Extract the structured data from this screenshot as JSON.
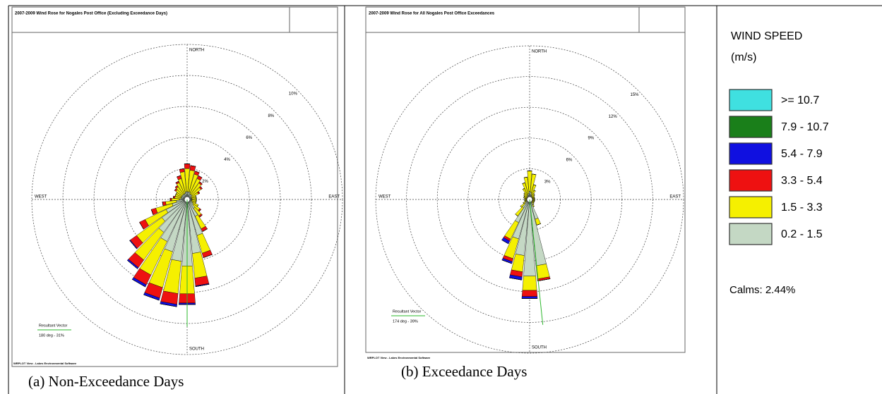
{
  "chart_data": [
    {
      "type": "windrose",
      "title": "2007-2009 Wind Rose for Nogales Post Office (Excluding Exceedance Days)",
      "caption": "(a) Non-Exceedance Days",
      "footer": "WRPLOT View - Lakes Environmental Software",
      "direction_labels": {
        "north": "NORTH",
        "south": "SOUTH",
        "east": "EAST",
        "west": "WEST"
      },
      "resultant": {
        "label": "Resultant Vector",
        "direction": 180,
        "text": "180 deg - 31%"
      },
      "rlim": [
        0,
        10
      ],
      "rticks": [
        {
          "value": 2,
          "label": "2%"
        },
        {
          "value": 4,
          "label": "4%"
        },
        {
          "value": 6,
          "label": "6%"
        },
        {
          "value": 8,
          "label": "8%"
        },
        {
          "value": 10,
          "label": "10%"
        }
      ],
      "directions": [
        0,
        10,
        20,
        30,
        40,
        50,
        60,
        70,
        80,
        90,
        100,
        110,
        120,
        130,
        140,
        150,
        160,
        170,
        180,
        190,
        200,
        210,
        220,
        230,
        240,
        250,
        260,
        270,
        280,
        290,
        300,
        310,
        320,
        330,
        340,
        350
      ],
      "series": [
        {
          "values": [
            0,
            0,
            0,
            0,
            0,
            0,
            0,
            0,
            0,
            0,
            0,
            0,
            0,
            0,
            0,
            0,
            0,
            0,
            0,
            0,
            0,
            0,
            0,
            0,
            0,
            0,
            0,
            0,
            0,
            0,
            0,
            0,
            0,
            0,
            0,
            0
          ]
        },
        {
          "values": [
            0,
            0,
            0,
            0,
            0,
            0,
            0,
            0,
            0,
            0,
            0,
            0,
            0,
            0,
            0,
            0,
            0,
            0,
            0,
            0,
            0,
            0,
            0,
            0,
            0,
            0,
            0,
            0,
            0,
            0,
            0,
            0,
            0,
            0,
            0,
            0
          ]
        },
        {
          "values": [
            0,
            0,
            0,
            0,
            0,
            0,
            0,
            0,
            0,
            0,
            0,
            0,
            0,
            0,
            0,
            0,
            0,
            0.05,
            0.1,
            0.15,
            0.15,
            0.15,
            0.1,
            0.05,
            0,
            0,
            0,
            0,
            0,
            0,
            0,
            0,
            0,
            0,
            0,
            0
          ]
        },
        {
          "values": [
            0.3,
            0.3,
            0.2,
            0.2,
            0.1,
            0.1,
            0.1,
            0,
            0,
            0,
            0,
            0,
            0,
            0.1,
            0.1,
            0.2,
            0.3,
            0.5,
            0.6,
            0.7,
            0.7,
            0.7,
            0.6,
            0.5,
            0.4,
            0.3,
            0.2,
            0.1,
            0.1,
            0,
            0,
            0.1,
            0.1,
            0.1,
            0.2,
            0.2
          ]
        },
        {
          "values": [
            1.5,
            1.4,
            1.2,
            1.1,
            0.9,
            0.7,
            0.5,
            0.3,
            0.3,
            0.3,
            0.3,
            0.3,
            0.4,
            0.5,
            0.6,
            0.9,
            1.2,
            1.6,
            1.8,
            2.1,
            2.4,
            2.4,
            2.2,
            2.0,
            1.5,
            1.1,
            0.7,
            0.5,
            0.4,
            0.4,
            0.4,
            0.5,
            0.6,
            0.8,
            1.0,
            1.3
          ]
        },
        {
          "values": [
            0.5,
            0.5,
            0.5,
            0.4,
            0.4,
            0.4,
            0.3,
            0.3,
            0.3,
            0.3,
            0.3,
            0.3,
            0.4,
            0.5,
            0.7,
            1.2,
            2.4,
            3.5,
            4.3,
            4.0,
            3.5,
            3.0,
            2.6,
            2.0,
            1.5,
            1.0,
            0.7,
            0.5,
            0.4,
            0.4,
            0.4,
            0.4,
            0.4,
            0.4,
            0.4,
            0.5
          ]
        }
      ]
    },
    {
      "type": "windrose",
      "title": "2007-2009 Wind Rose for All Nogales Post Office Exceedances",
      "caption": "(b) Exceedance Days",
      "footer": "WRPLOT View - Lakes Environmental Software",
      "direction_labels": {
        "north": "NORTH",
        "south": "SOUTH",
        "east": "EAST",
        "west": "WEST"
      },
      "resultant": {
        "label": "Resultant Vector",
        "direction": 174,
        "text": "174 deg - 39%"
      },
      "rlim": [
        0,
        15
      ],
      "rticks": [
        {
          "value": 3,
          "label": "3%"
        },
        {
          "value": 6,
          "label": "6%"
        },
        {
          "value": 9,
          "label": "9%"
        },
        {
          "value": 12,
          "label": "12%"
        },
        {
          "value": 15,
          "label": "15%"
        }
      ],
      "directions": [
        0,
        10,
        20,
        30,
        40,
        50,
        60,
        70,
        80,
        90,
        100,
        110,
        120,
        130,
        140,
        150,
        160,
        170,
        180,
        190,
        200,
        210,
        220,
        230,
        240,
        250,
        260,
        270,
        280,
        290,
        300,
        310,
        320,
        330,
        340,
        350
      ],
      "series": [
        {
          "values": [
            0,
            0,
            0,
            0,
            0,
            0,
            0,
            0,
            0,
            0,
            0,
            0,
            0,
            0,
            0,
            0,
            0,
            0,
            0,
            0,
            0,
            0,
            0,
            0,
            0,
            0,
            0,
            0,
            0,
            0,
            0,
            0,
            0,
            0,
            0,
            0
          ]
        },
        {
          "values": [
            0,
            0,
            0,
            0,
            0,
            0,
            0,
            0,
            0,
            0,
            0,
            0,
            0,
            0,
            0,
            0,
            0,
            0,
            0,
            0,
            0,
            0,
            0,
            0,
            0,
            0,
            0,
            0,
            0,
            0,
            0,
            0,
            0,
            0,
            0,
            0
          ]
        },
        {
          "values": [
            0,
            0,
            0,
            0,
            0,
            0,
            0,
            0,
            0,
            0,
            0,
            0,
            0,
            0,
            0,
            0,
            0,
            0,
            0.2,
            0.3,
            0.2,
            0.3,
            0,
            0,
            0,
            0,
            0,
            0,
            0,
            0,
            0,
            0,
            0,
            0,
            0,
            0
          ]
        },
        {
          "values": [
            0,
            0,
            0,
            0,
            0,
            0,
            0,
            0,
            0,
            0,
            0,
            0,
            0,
            0,
            0,
            0,
            0,
            0.2,
            0.6,
            0.5,
            0.3,
            0.2,
            0,
            0,
            0,
            0,
            0,
            0,
            0,
            0,
            0,
            0,
            0,
            0,
            0,
            0
          ]
        },
        {
          "values": [
            2.0,
            1.8,
            1.0,
            0.6,
            0.4,
            0.3,
            0.2,
            0.2,
            0.2,
            0.2,
            0.2,
            0.2,
            0.2,
            0.2,
            0.2,
            0.2,
            0.6,
            1.3,
            1.4,
            1.6,
            2.0,
            1.8,
            1.0,
            0.5,
            0.3,
            0.2,
            0.2,
            0.2,
            0.2,
            0.3,
            0.3,
            0.4,
            0.5,
            0.8,
            1.2,
            1.6
          ]
        },
        {
          "values": [
            0.8,
            0.7,
            0.5,
            0.4,
            0.3,
            0.3,
            0.3,
            0.3,
            0.3,
            0.3,
            0.3,
            0.3,
            0.3,
            0.3,
            0.4,
            0.6,
            2.0,
            6.5,
            7.5,
            5.5,
            4.0,
            2.5,
            1.0,
            0.6,
            0.4,
            0.3,
            0.3,
            0.3,
            0.3,
            0.3,
            0.3,
            0.3,
            0.3,
            0.4,
            0.5,
            0.6
          ]
        }
      ]
    }
  ],
  "legend": {
    "title": "WIND SPEED",
    "unit": "(m/s)",
    "items": [
      {
        "name": ">= 10.7",
        "color": "#3fe0e0"
      },
      {
        "name": "7.9 - 10.7",
        "color": "#1a7f1a"
      },
      {
        "name": "5.4 - 7.9",
        "color": "#1010e0"
      },
      {
        "name": "3.3 - 5.4",
        "color": "#ee1111"
      },
      {
        "name": "1.5 - 3.3",
        "color": "#f5f000"
      },
      {
        "name": "0.2 - 1.5",
        "color": "#c4d8c4"
      }
    ],
    "calms": "Calms: 2.44%"
  }
}
